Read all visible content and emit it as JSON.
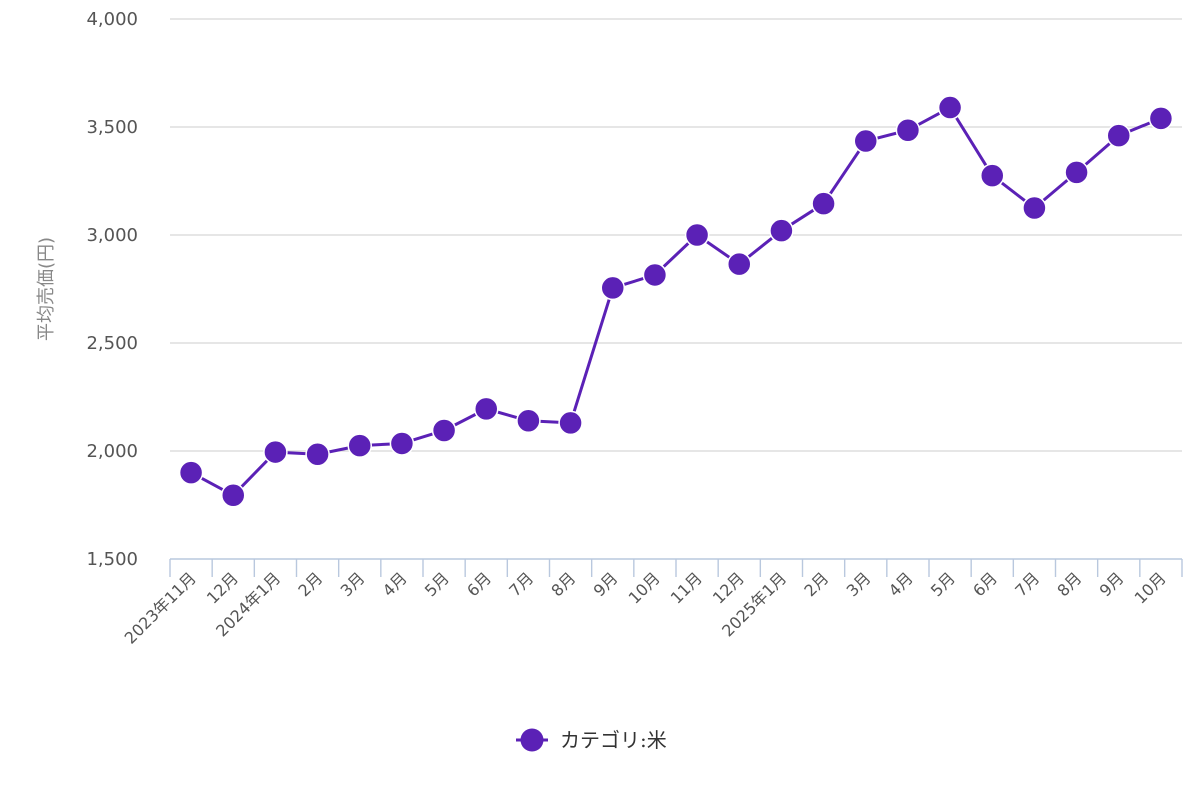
{
  "chart_data": {
    "type": "line",
    "ylabel": "平均売価(円)",
    "ylim": [
      1500,
      4000
    ],
    "yticks": [
      1500,
      2000,
      2500,
      3000,
      3500,
      4000
    ],
    "ytick_labels": [
      "1,500",
      "2,000",
      "2,500",
      "3,000",
      "3,500",
      "4,000"
    ],
    "categories": [
      "2023年11月",
      "12月",
      "2024年1月",
      "2月",
      "3月",
      "4月",
      "5月",
      "6月",
      "7月",
      "8月",
      "9月",
      "10月",
      "11月",
      "12月",
      "2025年1月",
      "2月",
      "3月",
      "4月",
      "5月",
      "6月",
      "7月",
      "8月",
      "9月",
      "10月"
    ],
    "series": [
      {
        "name": "カテゴリ:米",
        "color": "#5b21b6",
        "values": [
          1900,
          1795,
          1995,
          1985,
          2025,
          2035,
          2095,
          2195,
          2140,
          2130,
          2755,
          2815,
          3000,
          2865,
          3020,
          3145,
          3435,
          3485,
          3590,
          3275,
          3125,
          3290,
          3460,
          3540
        ]
      }
    ],
    "grid": true,
    "legend_position": "bottom-center"
  }
}
